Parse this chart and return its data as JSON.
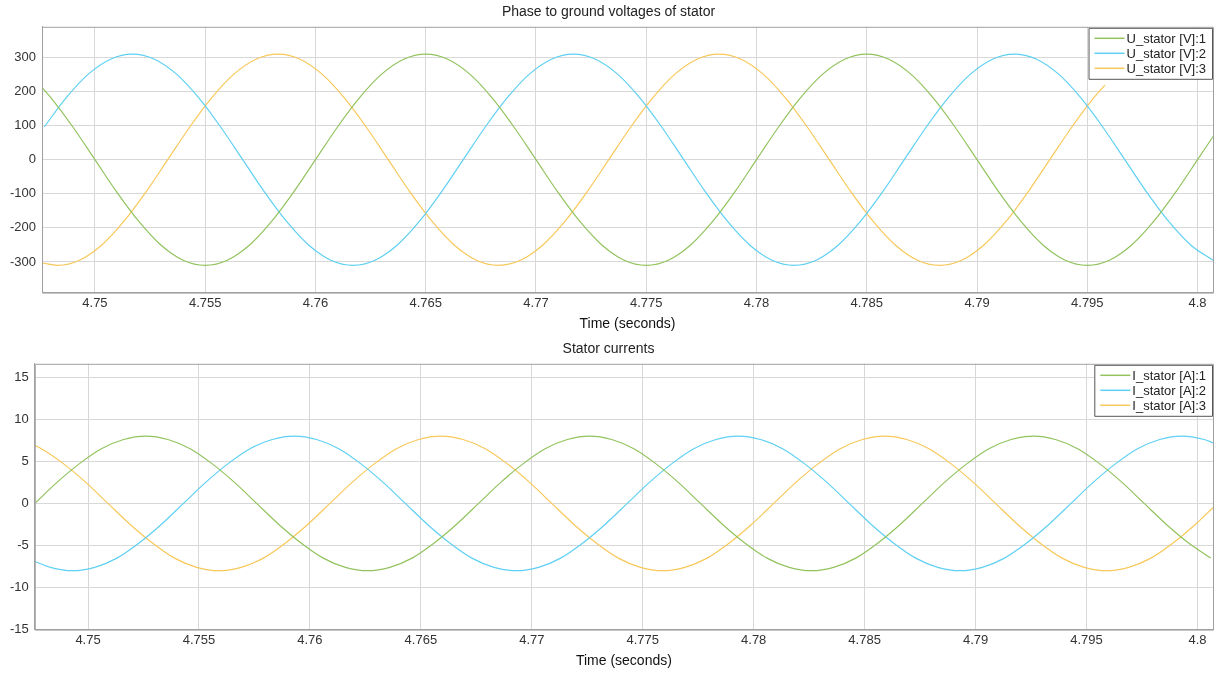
{
  "chart_data": [
    {
      "type": "line",
      "title": "Phase to ground voltages of stator",
      "xlabel": "Time (seconds)",
      "xlim": [
        4.7476,
        4.8007
      ],
      "xticks": [
        4.75,
        4.755,
        4.76,
        4.765,
        4.77,
        4.775,
        4.78,
        4.785,
        4.79,
        4.795,
        4.8
      ],
      "ylim": [
        -390,
        390
      ],
      "yticks": [
        -300,
        -200,
        -100,
        0,
        100,
        200,
        300
      ],
      "grid": true,
      "legend": "top right",
      "marker": "none",
      "series": [
        {
          "name": "U_stator [V]:1",
          "color": "#92c35e",
          "x": [
            4.7476,
            4.748,
            4.749,
            4.75,
            4.751,
            4.752,
            4.753,
            4.754,
            4.755,
            4.756,
            4.757,
            4.758,
            4.759,
            4.76,
            4.761,
            4.762,
            4.763,
            4.764,
            4.765,
            4.766,
            4.767,
            4.768,
            4.769,
            4.77,
            4.771,
            4.772,
            4.773,
            4.774,
            4.775,
            4.776,
            4.777,
            4.778,
            4.779,
            4.78,
            4.781,
            4.782,
            4.783,
            4.784,
            4.785,
            4.786,
            4.787,
            4.788,
            4.789,
            4.79,
            4.791,
            4.792,
            4.793,
            4.794,
            4.795,
            4.796,
            4.797,
            4.798,
            4.799,
            4.8,
            4.8007
          ],
          "values": [
            212,
            182,
            96,
            0,
            -96,
            -182,
            -251,
            -295,
            -310,
            -295,
            -251,
            -182,
            -96,
            0,
            96,
            182,
            251,
            295,
            310,
            295,
            251,
            182,
            96,
            0,
            -96,
            -182,
            -251,
            -295,
            -310,
            -295,
            -251,
            -182,
            -96,
            0,
            96,
            182,
            251,
            295,
            310,
            295,
            251,
            182,
            96,
            0,
            -96,
            -182,
            -251,
            -295,
            -310,
            -295,
            -251,
            -182,
            -96,
            0,
            68
          ]
        },
        {
          "name": "U_stator [V]:2",
          "color": "#5fd0f3",
          "x": [
            4.7477,
            4.7487,
            4.7497,
            4.7507,
            4.7517,
            4.7527,
            4.7537,
            4.7547,
            4.7557,
            4.7567,
            4.7577,
            4.7587,
            4.7597,
            4.7607,
            4.7617,
            4.7627,
            4.7637,
            4.7647,
            4.7657,
            4.7667,
            4.7677,
            4.7687,
            4.7697,
            4.7707,
            4.7717,
            4.7727,
            4.7737,
            4.7747,
            4.7757,
            4.7767,
            4.7777,
            4.7787,
            4.7797,
            4.7807,
            4.7817,
            4.7827,
            4.7837,
            4.7847,
            4.7857,
            4.7867,
            4.7877,
            4.7887,
            4.7897,
            4.7907,
            4.7917,
            4.7927,
            4.7937,
            4.7947,
            4.7957,
            4.7967,
            4.7977,
            4.7987,
            4.7997,
            4.8007
          ],
          "values": [
            96,
            182,
            251,
            295,
            310,
            295,
            251,
            182,
            96,
            0,
            -96,
            -182,
            -251,
            -295,
            -310,
            -295,
            -251,
            -182,
            -96,
            0,
            96,
            182,
            251,
            295,
            310,
            295,
            251,
            182,
            96,
            0,
            -96,
            -182,
            -251,
            -295,
            -310,
            -295,
            -251,
            -182,
            -96,
            0,
            96,
            182,
            251,
            295,
            310,
            295,
            251,
            182,
            96,
            0,
            -96,
            -182,
            -251,
            -295
          ]
        },
        {
          "name": "U_stator [V]:3",
          "color": "#f8c85a",
          "x": [
            4.7476,
            4.7483,
            4.7493,
            4.7503,
            4.7513,
            4.7523,
            4.7533,
            4.7543,
            4.7553,
            4.7563,
            4.7573,
            4.7583,
            4.7593,
            4.7603,
            4.7613,
            4.7623,
            4.7633,
            4.7643,
            4.7653,
            4.7663,
            4.7673,
            4.7683,
            4.7693,
            4.7703,
            4.7713,
            4.7723,
            4.7733,
            4.7743,
            4.7753,
            4.7763,
            4.7773,
            4.7783,
            4.7793,
            4.7803,
            4.7813,
            4.7823,
            4.7833,
            4.7843,
            4.7853,
            4.7863,
            4.7873,
            4.7883,
            4.7893,
            4.7903,
            4.7913,
            4.7923,
            4.7933,
            4.7943,
            4.7953,
            4.7958
          ],
          "values": [
            -303,
            -310,
            -295,
            -251,
            -182,
            -96,
            0,
            96,
            182,
            251,
            295,
            310,
            295,
            251,
            182,
            96,
            0,
            -96,
            -182,
            -251,
            -295,
            -310,
            -295,
            -251,
            -182,
            -96,
            0,
            96,
            182,
            251,
            295,
            310,
            295,
            251,
            182,
            96,
            0,
            -96,
            -182,
            -251,
            -295,
            -310,
            -295,
            -251,
            -182,
            -96,
            0,
            96,
            182,
            219
          ]
        }
      ]
    },
    {
      "type": "line",
      "title": "Stator currents",
      "xlabel": "Time (seconds)",
      "xlim": [
        4.7476,
        4.8007
      ],
      "xticks": [
        4.75,
        4.755,
        4.76,
        4.765,
        4.77,
        4.775,
        4.78,
        4.785,
        4.79,
        4.795,
        4.8
      ],
      "ylim": [
        -15,
        16.6
      ],
      "yticks": [
        -15,
        -10,
        -5,
        0,
        5,
        10,
        15
      ],
      "grid": true,
      "legend": "top right",
      "marker": "none",
      "series": [
        {
          "name": "I_stator [A]:1",
          "color": "#92c35e",
          "x": [
            4.7476,
            4.7486,
            4.7496,
            4.7506,
            4.7516,
            4.7526,
            4.7536,
            4.7546,
            4.7556,
            4.7566,
            4.7576,
            4.7586,
            4.7596,
            4.7606,
            4.7616,
            4.7626,
            4.7636,
            4.7646,
            4.7656,
            4.7666,
            4.7676,
            4.7686,
            4.7696,
            4.7706,
            4.7716,
            4.7726,
            4.7736,
            4.7746,
            4.7756,
            4.7766,
            4.7776,
            4.7786,
            4.7796,
            4.7806,
            4.7816,
            4.7826,
            4.7836,
            4.7846,
            4.7856,
            4.7866,
            4.7876,
            4.7886,
            4.7896,
            4.7906,
            4.7916,
            4.7926,
            4.7936,
            4.7946,
            4.7956,
            4.7966,
            4.7976,
            4.7986,
            4.7996,
            4.8006
          ],
          "values": [
            0,
            2.5,
            4.7,
            6.5,
            7.6,
            8,
            7.6,
            6.5,
            4.7,
            2.5,
            0,
            -2.5,
            -4.7,
            -6.5,
            -7.6,
            -8,
            -7.6,
            -6.5,
            -4.7,
            -2.5,
            0,
            2.5,
            4.7,
            6.5,
            7.6,
            8,
            7.6,
            6.5,
            4.7,
            2.5,
            0,
            -2.5,
            -4.7,
            -6.5,
            -7.6,
            -8,
            -7.6,
            -6.5,
            -4.7,
            -2.5,
            0,
            2.5,
            4.7,
            6.5,
            7.6,
            8,
            7.6,
            6.5,
            4.7,
            2.5,
            0,
            -2.5,
            -4.7,
            -6.5
          ]
        },
        {
          "name": "I_stator [A]:2",
          "color": "#5fd0f3",
          "x": [
            4.7476,
            4.7483,
            4.7493,
            4.7503,
            4.7513,
            4.7523,
            4.7533,
            4.7543,
            4.7553,
            4.7563,
            4.7573,
            4.7583,
            4.7593,
            4.7603,
            4.7613,
            4.7623,
            4.7633,
            4.7643,
            4.7653,
            4.7663,
            4.7673,
            4.7683,
            4.7693,
            4.7703,
            4.7713,
            4.7723,
            4.7733,
            4.7743,
            4.7753,
            4.7763,
            4.7773,
            4.7783,
            4.7793,
            4.7803,
            4.7813,
            4.7823,
            4.7833,
            4.7843,
            4.7853,
            4.7863,
            4.7873,
            4.7883,
            4.7893,
            4.7903,
            4.7913,
            4.7923,
            4.7933,
            4.7943,
            4.7953,
            4.7963,
            4.7973,
            4.7983,
            4.7993,
            4.8003,
            4.8007
          ],
          "values": [
            -6.9,
            -7.6,
            -8,
            -7.6,
            -6.5,
            -4.7,
            -2.5,
            0,
            2.5,
            4.7,
            6.5,
            7.6,
            8,
            7.6,
            6.5,
            4.7,
            2.5,
            0,
            -2.5,
            -4.7,
            -6.5,
            -7.6,
            -8,
            -7.6,
            -6.5,
            -4.7,
            -2.5,
            0,
            2.5,
            4.7,
            6.5,
            7.6,
            8,
            7.6,
            6.5,
            4.7,
            2.5,
            0,
            -2.5,
            -4.7,
            -6.5,
            -7.6,
            -8,
            -7.6,
            -6.5,
            -4.7,
            -2.5,
            0,
            2.5,
            4.7,
            6.5,
            7.6,
            8,
            7.6,
            7.2
          ]
        },
        {
          "name": "I_stator [A]:3",
          "color": "#f8c85a",
          "x": [
            4.7476,
            4.7479,
            4.7489,
            4.7499,
            4.7509,
            4.7519,
            4.7529,
            4.7539,
            4.7549,
            4.7559,
            4.7569,
            4.7579,
            4.7589,
            4.7599,
            4.7609,
            4.7619,
            4.7629,
            4.7639,
            4.7649,
            4.7659,
            4.7669,
            4.7679,
            4.7689,
            4.7699,
            4.7709,
            4.7719,
            4.7729,
            4.7739,
            4.7749,
            4.7759,
            4.7769,
            4.7779,
            4.7789,
            4.7799,
            4.7809,
            4.7819,
            4.7829,
            4.7839,
            4.7849,
            4.7859,
            4.7869,
            4.7879,
            4.7889,
            4.7899,
            4.7909,
            4.7919,
            4.7929,
            4.7939,
            4.7949,
            4.7959,
            4.7969,
            4.7979,
            4.7989,
            4.7999,
            4.8007
          ],
          "values": [
            6.9,
            6.5,
            4.7,
            2.5,
            0,
            -2.5,
            -4.7,
            -6.5,
            -7.6,
            -8,
            -7.6,
            -6.5,
            -4.7,
            -2.5,
            0,
            2.5,
            4.7,
            6.5,
            7.6,
            8,
            7.6,
            6.5,
            4.7,
            2.5,
            0,
            -2.5,
            -4.7,
            -6.5,
            -7.6,
            -8,
            -7.6,
            -6.5,
            -4.7,
            -2.5,
            0,
            2.5,
            4.7,
            6.5,
            7.6,
            8,
            7.6,
            6.5,
            4.7,
            2.5,
            0,
            -2.5,
            -4.7,
            -6.5,
            -7.6,
            -8,
            -7.6,
            -6.5,
            -4.7,
            -2.5,
            -0.5
          ]
        }
      ]
    }
  ]
}
